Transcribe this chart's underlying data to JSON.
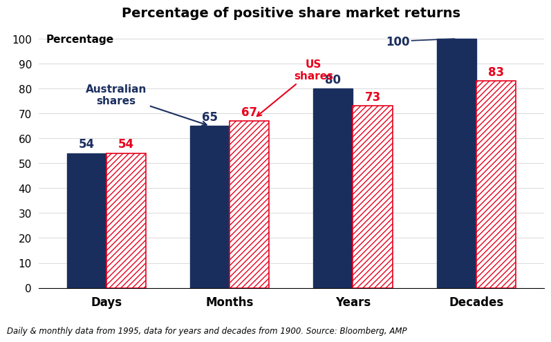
{
  "title": "Percentage of positive share market returns",
  "ylabel": "Percentage",
  "categories": [
    "Days",
    "Months",
    "Years",
    "Decades"
  ],
  "aus_values": [
    54,
    65,
    80,
    100
  ],
  "us_values": [
    54,
    67,
    73,
    83
  ],
  "aus_color": "#1a2e5e",
  "us_color_face": "#ffffff",
  "us_color_hatch": "#e8001c",
  "ylim": [
    0,
    105
  ],
  "yticks": [
    0,
    10,
    20,
    30,
    40,
    50,
    60,
    70,
    80,
    90,
    100
  ],
  "bar_width": 0.32,
  "aus_label": "Australian\nshares",
  "us_label": "US\nshares",
  "aus_label_color": "#1a2e5e",
  "us_label_color": "#e8001c",
  "footnote": "Daily & monthly data from 1995, data for years and decades from 1900. Source: Bloomberg, AMP",
  "title_fontsize": 14,
  "axis_label_fontsize": 11,
  "tick_fontsize": 11,
  "bar_value_fontsize": 12,
  "annot_fontsize": 11,
  "xlabel_fontsize": 12
}
